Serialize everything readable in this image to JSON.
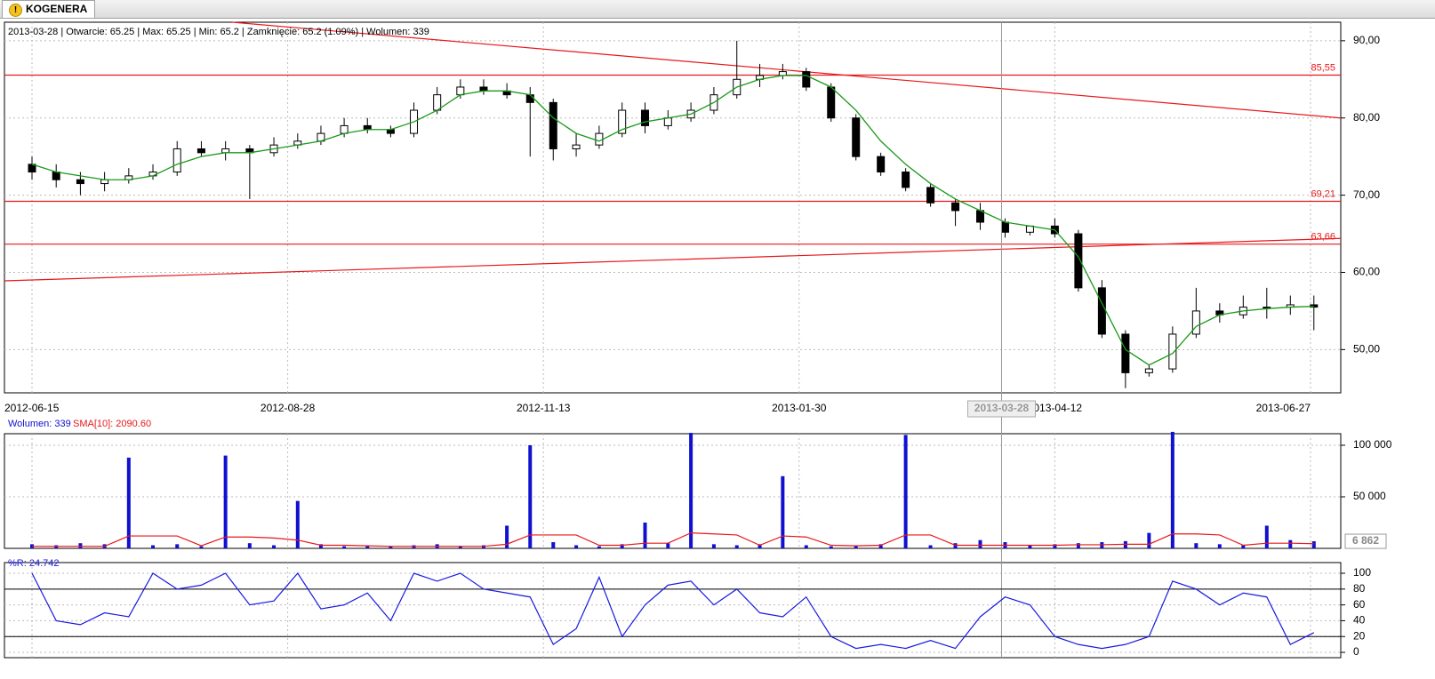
{
  "tab": "KOGENERA",
  "chart_data": [
    {
      "type": "candlestick",
      "info": "2013-03-28 | Otwarcie: 65.25 | Max: 65.25 | Min: 65.2 | Zamknięcie: 65.2 (1.09%)  | Wolumen: 339",
      "crosshair": "2013-03-28",
      "x": [
        "2012-06-15",
        "2012-06-22",
        "2012-06-29",
        "2012-07-06",
        "2012-07-13",
        "2012-07-20",
        "2012-07-27",
        "2012-08-03",
        "2012-08-10",
        "2012-08-17",
        "2012-08-24",
        "2012-08-31",
        "2012-09-07",
        "2012-09-14",
        "2012-09-21",
        "2012-09-28",
        "2012-10-05",
        "2012-10-12",
        "2012-10-19",
        "2012-10-26",
        "2012-11-02",
        "2012-11-09",
        "2012-11-16",
        "2012-11-23",
        "2012-11-30",
        "2012-12-07",
        "2012-12-14",
        "2012-12-21",
        "2012-12-28",
        "2013-01-04",
        "2013-01-11",
        "2013-01-18",
        "2013-01-25",
        "2013-02-01",
        "2013-02-08",
        "2013-02-15",
        "2013-02-22",
        "2013-03-01",
        "2013-03-08",
        "2013-03-15",
        "2013-03-22",
        "2013-03-29",
        "2013-04-05",
        "2013-04-12",
        "2013-04-19",
        "2013-04-26",
        "2013-05-03",
        "2013-05-10",
        "2013-05-17",
        "2013-05-24",
        "2013-05-31",
        "2013-06-07",
        "2013-06-14",
        "2013-06-21",
        "2013-06-28"
      ],
      "open": [
        74,
        73,
        72,
        71.5,
        72,
        72.5,
        73,
        76,
        75.5,
        76,
        75.5,
        76.5,
        77,
        78,
        79,
        78.5,
        78,
        81,
        83,
        84,
        83.5,
        83,
        82,
        76,
        76.5,
        78,
        81,
        79,
        80,
        81,
        83,
        85,
        85.5,
        86,
        84,
        80,
        75,
        73,
        71,
        69,
        68,
        66.5,
        65.2,
        66,
        65,
        58,
        52,
        47,
        47.5,
        52,
        55,
        54.5,
        55.5,
        55.5,
        55.8
      ],
      "high": [
        75,
        74,
        73,
        73,
        73.5,
        74,
        77,
        77,
        77,
        76.5,
        77.5,
        78,
        79,
        80,
        80,
        79,
        82,
        84,
        85,
        85,
        84.5,
        84,
        82.5,
        78,
        79,
        82,
        82,
        81,
        82,
        84,
        90,
        87,
        87,
        86.5,
        84.5,
        80.5,
        75.5,
        73.5,
        71.5,
        69.5,
        69,
        67,
        66,
        67,
        65.5,
        59,
        52.5,
        48,
        53,
        58,
        56,
        57,
        58,
        57,
        57
      ],
      "low": [
        72,
        71,
        70,
        70.5,
        71.5,
        72,
        72.5,
        75,
        74.5,
        69.5,
        75,
        76,
        76.5,
        77.5,
        78,
        77.5,
        77.5,
        80.5,
        82.5,
        83,
        82.5,
        75,
        74.5,
        75,
        76,
        77.5,
        78,
        78.5,
        79.5,
        80.5,
        82.5,
        84,
        85,
        83.5,
        79.5,
        74.5,
        72.5,
        70.5,
        68.5,
        66,
        65.5,
        64.5,
        64.8,
        64.5,
        57.5,
        51.5,
        45,
        46.5,
        47,
        51.5,
        53.5,
        54,
        54,
        54.5,
        52.5
      ],
      "close": [
        73,
        72,
        71.5,
        72,
        72.5,
        73,
        76,
        75.5,
        76,
        75.5,
        76.5,
        77,
        78,
        79,
        78.5,
        78,
        81,
        83,
        84,
        83.5,
        83,
        82,
        76,
        76.5,
        78,
        81,
        79,
        80,
        81,
        83,
        85,
        85.5,
        86,
        84,
        80,
        75,
        73,
        71,
        69,
        68,
        66.5,
        65.2,
        66,
        65,
        58,
        52,
        47,
        47.5,
        52,
        55,
        54.5,
        55.5,
        55.5,
        55.8,
        55.5
      ],
      "sma": [
        74,
        73,
        72.5,
        72,
        72,
        72.5,
        74,
        75,
        75.5,
        75.5,
        76,
        76.5,
        77,
        78,
        78.5,
        78.5,
        79.5,
        81,
        83,
        83.5,
        83.5,
        83,
        80,
        78,
        77,
        78.5,
        79.5,
        80,
        80.5,
        82,
        84,
        85,
        85.5,
        85.5,
        84,
        81,
        77,
        74,
        71.5,
        69.5,
        68,
        66.5,
        66,
        65.5,
        62,
        56,
        50,
        48,
        49.5,
        53,
        54.5,
        55,
        55.3,
        55.5,
        55.6
      ],
      "sma_color": "#1a9a1a",
      "levels": [
        {
          "value": 85.55,
          "label": "85,55"
        },
        {
          "value": 69.21,
          "label": "69,21"
        },
        {
          "value": 63.66,
          "label": "63,66"
        }
      ],
      "trendlines": [
        [
          [
            "2012-08-12",
            92.4
          ],
          [
            "2013-07-06",
            80.0
          ]
        ],
        [
          [
            "2012-06-07",
            58.9
          ],
          [
            "2013-07-06",
            64.4
          ]
        ]
      ],
      "line_color": "#e8171b",
      "xlim": [
        "2012-06-07",
        "2013-07-06"
      ],
      "xticks": [
        "2012-06-15",
        "2012-08-28",
        "2012-11-13",
        "2013-01-30",
        "2013-04-12",
        "2013-06-27"
      ],
      "ylim": [
        44.4,
        92.4
      ],
      "yticks": [
        {
          "value": 50,
          "label": "50,00"
        },
        {
          "value": 60,
          "label": "60,00"
        },
        {
          "value": 70,
          "label": "70,00"
        },
        {
          "value": 80,
          "label": "80,00"
        },
        {
          "value": 90,
          "label": "90,00"
        }
      ],
      "grid": true
    },
    {
      "type": "bar",
      "legend": [
        "Wolumen: 339",
        "SMA[10]: 2090.60"
      ],
      "series": [
        {
          "name": "Wolumen",
          "color": "#1010d0",
          "values": [
            4000,
            3000,
            5000,
            4000,
            88000,
            3000,
            4000,
            2000,
            90000,
            5000,
            3000,
            46000,
            4000,
            2000,
            3000,
            2000,
            3000,
            4000,
            2000,
            3000,
            22000,
            100000,
            6000,
            3000,
            2000,
            4000,
            25000,
            5000,
            112000,
            4000,
            3000,
            4000,
            70000,
            3000,
            2000,
            3000,
            4000,
            110000,
            3000,
            5000,
            8000,
            6000,
            3000,
            4000,
            5000,
            6000,
            7000,
            15000,
            113000,
            5000,
            4000,
            3000,
            22000,
            8000,
            6862
          ]
        },
        {
          "name": "SMA[10]",
          "color": "#e8171b",
          "values": [
            2000,
            2000,
            2000,
            2000,
            12000,
            12000,
            12000,
            2500,
            11000,
            11000,
            10000,
            8000,
            3000,
            3000,
            2500,
            2000,
            2000,
            2000,
            2000,
            2000,
            4000,
            13000,
            13000,
            13000,
            3000,
            3000,
            5000,
            5000,
            15000,
            14000,
            13000,
            3000,
            12000,
            11000,
            3000,
            2500,
            3000,
            13000,
            13000,
            3000,
            3000,
            3000,
            3000,
            3000,
            3500,
            3500,
            4000,
            4000,
            14000,
            14000,
            13000,
            3000,
            5000,
            5000,
            4500
          ]
        }
      ],
      "last": {
        "value": 6862,
        "label": "6 862"
      },
      "ylim": [
        0,
        111200
      ],
      "yticks": [
        {
          "value": 50000,
          "label": "50 000"
        },
        {
          "value": 100000,
          "label": "100 000"
        }
      ],
      "grid": true
    },
    {
      "type": "line",
      "legend": "%R: 24.742",
      "color": "#1a1ae0",
      "values": [
        100,
        40,
        35,
        50,
        45,
        100,
        80,
        85,
        100,
        60,
        65,
        100,
        55,
        60,
        75,
        40,
        100,
        90,
        100,
        80,
        75,
        70,
        10,
        30,
        95,
        20,
        60,
        85,
        90,
        60,
        80,
        50,
        45,
        70,
        20,
        5,
        10,
        5,
        15,
        5,
        45,
        70,
        60,
        20,
        10,
        5,
        10,
        20,
        90,
        80,
        60,
        75,
        70,
        10,
        25
      ],
      "levels": [
        20,
        80
      ],
      "ylim": [
        -6.7,
        113.5
      ],
      "yticks": [
        0,
        20,
        40,
        60,
        80,
        100
      ],
      "grid": true
    }
  ]
}
